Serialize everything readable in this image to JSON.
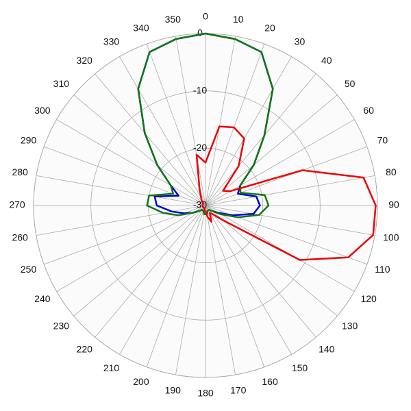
{
  "chart_data": {
    "type": "polar",
    "x": [
      0,
      10,
      20,
      30,
      40,
      50,
      60,
      70,
      80,
      90,
      100,
      110,
      120,
      130,
      140,
      150,
      160,
      170,
      180,
      190,
      200,
      210,
      220,
      230,
      240,
      250,
      260,
      270,
      280,
      290,
      300,
      310,
      320,
      330,
      340,
      350
    ],
    "xticks": [
      0,
      10,
      20,
      30,
      40,
      50,
      60,
      70,
      80,
      90,
      100,
      110,
      120,
      130,
      140,
      150,
      160,
      170,
      180,
      190,
      200,
      210,
      220,
      230,
      240,
      250,
      260,
      270,
      280,
      290,
      300,
      310,
      320,
      330,
      340,
      350
    ],
    "ylim": [
      -30,
      0
    ],
    "yticks": [
      -30,
      -20,
      -10,
      0
    ],
    "grid": true,
    "series": [
      {
        "color": "#0000dd",
        "values": [
          0,
          -0.5,
          -1.5,
          -6.5,
          -14,
          -19,
          -23,
          -24,
          -21,
          -20.5,
          -21.5,
          -25,
          -27.5,
          -28.5,
          -29,
          -29,
          -29,
          -28.5,
          -28.5,
          -28.5,
          -29,
          -29,
          -29,
          -28.5,
          -27.5,
          -26,
          -24,
          -21.5,
          -21,
          -25,
          -23,
          -19,
          -13.5,
          -6.5,
          -1.5,
          -0.5
        ]
      },
      {
        "color": "#117711",
        "values": [
          0,
          -0.5,
          -1.5,
          -6.5,
          -14,
          -19,
          -23,
          -23.5,
          -19.5,
          -19,
          -20.5,
          -24,
          -27,
          -28.5,
          -29,
          -29,
          -29,
          -28.5,
          -28.5,
          -28.5,
          -29,
          -29,
          -29,
          -28.5,
          -27.5,
          -25,
          -22.5,
          -19.8,
          -20,
          -24,
          -23,
          -19,
          -13.5,
          -6.5,
          -1.5,
          -0.5
        ]
      },
      {
        "color": "#ee0000",
        "values": [
          -22.5,
          -16,
          -15.5,
          -16.5,
          -21,
          -26,
          -25,
          -12,
          -2,
          -0.3,
          -0.3,
          -3.5,
          -11,
          -26,
          -28,
          -28.5,
          -27,
          -28,
          -29,
          -29,
          -29.5,
          -29.5,
          -29.5,
          -29.5,
          -29.5,
          -29.5,
          -29.5,
          -29.5,
          -29.5,
          -29.5,
          -29.5,
          -29.5,
          -29,
          -28.5,
          -27,
          -21
        ]
      }
    ]
  }
}
